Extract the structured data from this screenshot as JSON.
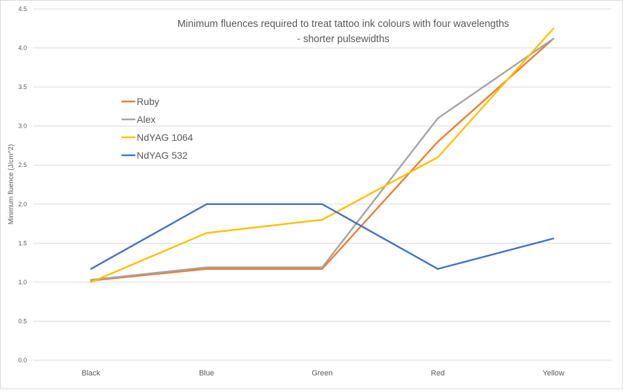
{
  "chart_data": {
    "type": "line",
    "title": "Minimum fluences required to treat tattoo ink colours with four wavelengths",
    "subtitle": "- shorter pulsewidths",
    "xlabel": "",
    "ylabel": "Minimum fluence (J/cm^2)",
    "categories": [
      "Black",
      "Blue",
      "Green",
      "Red",
      "Yellow"
    ],
    "ylim": [
      0,
      4.5
    ],
    "yticks": [
      "0.0",
      "0.5",
      "1.0",
      "1.5",
      "2.0",
      "2.5",
      "3.0",
      "3.5",
      "4.0",
      "4.5"
    ],
    "grid": true,
    "legend_position": "left",
    "series": [
      {
        "name": "Ruby",
        "color": "#ed7d31",
        "values": [
          1.02,
          1.17,
          1.17,
          2.8,
          4.12
        ]
      },
      {
        "name": "Alex",
        "color": "#a5a5a5",
        "values": [
          1.03,
          1.19,
          1.19,
          3.1,
          4.12
        ]
      },
      {
        "name": "NdYAG 1064",
        "color": "#ffc000",
        "values": [
          1.0,
          1.63,
          1.8,
          2.6,
          4.25
        ]
      },
      {
        "name": "NdYAG 532",
        "color": "#4472c4",
        "values": [
          1.17,
          2.0,
          2.0,
          1.17,
          1.56
        ]
      }
    ]
  }
}
